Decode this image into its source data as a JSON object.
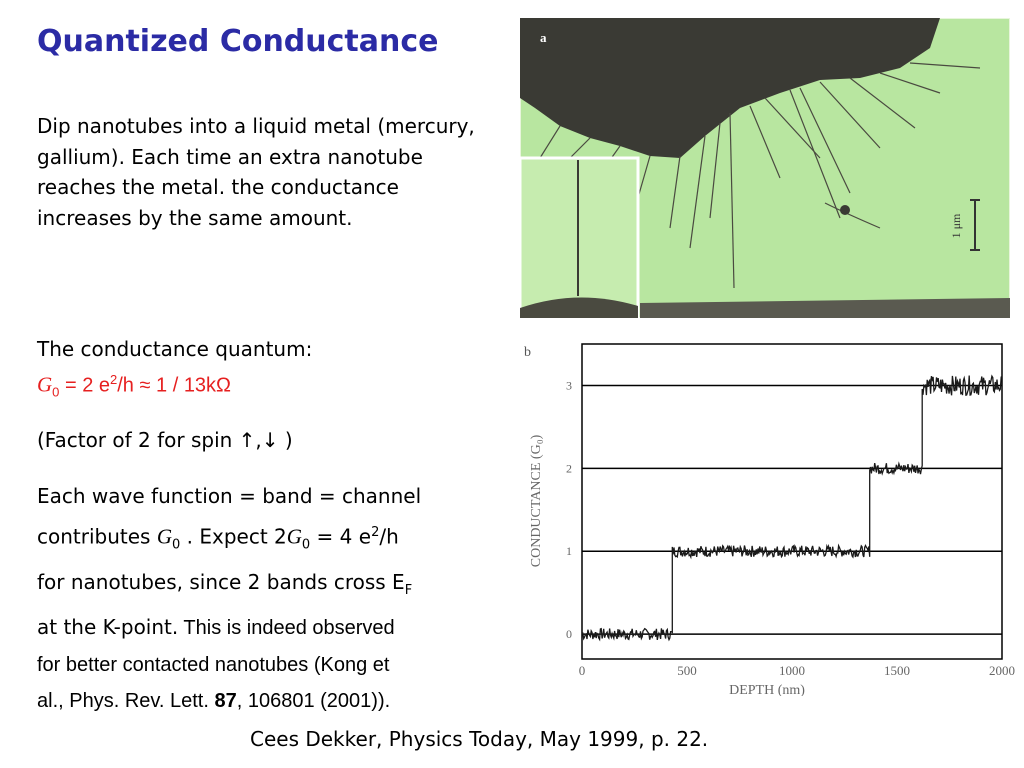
{
  "slide": {
    "title": "Quantized Conductance",
    "intro": "Dip nanotubes into a liquid metal (mercury, gallium). Each time an extra nanotube reaches the metal. the conductance increases by the same amount.",
    "quantum_label": "The conductance quantum:",
    "formula": {
      "g": "G",
      "g_sub": "0",
      "eq": " = 2 e",
      "sup": "2",
      "rest": "/h  ≈ 1 / 13kΩ"
    },
    "spin_note": "(Factor of 2 for spin ↑,↓ )",
    "para3": {
      "line1": "Each wave function = band = channel",
      "line2a": "contributes ",
      "line2_g": "G",
      "line2_g_sub": "0",
      "line2b": " .  Expect  2",
      "line2_g2": "G",
      "line2_g2_sub": "0",
      "line2c": " = 4 e",
      "line2_sup": "2",
      "line2d": "/h",
      "line3": "for nanotubes, since 2 bands cross E",
      "line3_sub": "F",
      "line4a": "at the K-point.",
      "line4b": " This is indeed observed",
      "line5": "for better contacted nanotubes (Kong et",
      "line6a": "al., Phys. Rev. Lett. ",
      "line6_bold": "87",
      "line6b": ", 106801 (2001))."
    },
    "citation": "Cees Dekker, Physics Today, May 1999, p. 22."
  },
  "figure_a": {
    "panel_label": "a",
    "scale_label": "1 μm"
  },
  "chart_data": {
    "type": "line",
    "panel_label": "b",
    "xlabel": "DEPTH (nm)",
    "ylabel": "CONDUCTANCE (G₀)",
    "xlim": [
      0,
      2000
    ],
    "ylim": [
      -0.3,
      3.5
    ],
    "x_ticks": [
      "0",
      "500",
      "1000",
      "1500",
      "2000"
    ],
    "y_ticks": [
      "0",
      "1",
      "2",
      "3"
    ],
    "grid": "horizontal at integer conductance levels",
    "steps": [
      {
        "x_start": 0,
        "x_end": 430,
        "y": 0.0
      },
      {
        "x_start": 430,
        "x_end": 1370,
        "y": 1.0
      },
      {
        "x_start": 1370,
        "x_end": 1620,
        "y": 2.0
      },
      {
        "x_start": 1620,
        "x_end": 2000,
        "y": 3.0
      }
    ],
    "colors": {
      "line": "#1a1a1a",
      "grid": "#000000"
    }
  },
  "colors": {
    "title": "#2b2ba5",
    "formula": "#e62020",
    "micrograph_bg": "#b8e6a0",
    "metal": "#3a3a34"
  }
}
